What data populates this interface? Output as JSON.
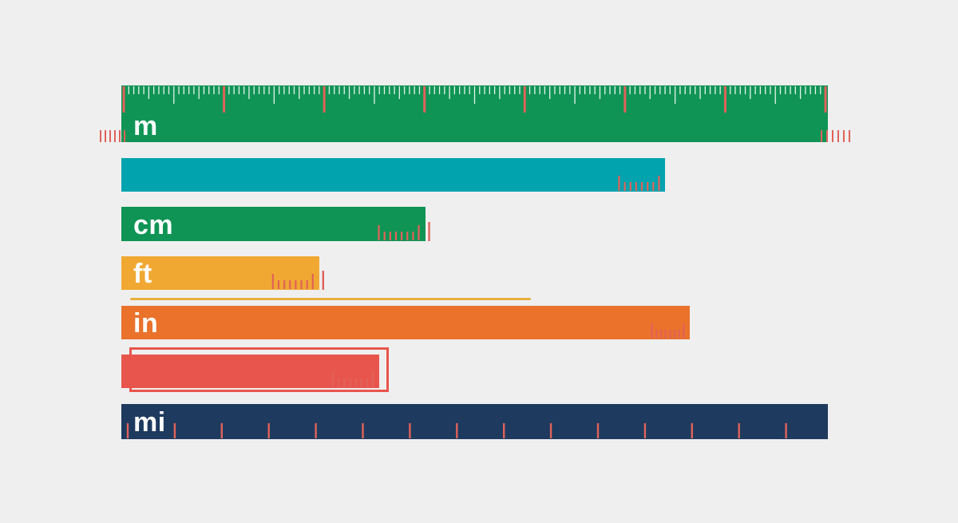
{
  "chart_data": {
    "type": "bar",
    "orientation": "horizontal",
    "title": "",
    "xlabel": "",
    "ylabel": "",
    "grid": false,
    "legend": "none",
    "categories": [
      "m",
      "",
      "cm",
      "ft",
      "in",
      "",
      "mi"
    ],
    "values": [
      1.0,
      0.77,
      0.43,
      0.28,
      0.805,
      0.365,
      1.0
    ],
    "xlim": [
      0,
      1
    ],
    "colors": [
      "#0f9455",
      "#00a3ae",
      "#0f9455",
      "#f0a832",
      "#ea722b",
      "#e8554c",
      "#1e3a5f"
    ],
    "tick_color": "#e0625a"
  },
  "decor": {
    "yellow_rule": {
      "color": "#e7b13e",
      "value": 0.58
    },
    "red_outline": {
      "color": "#e8554c",
      "value": 0.365
    }
  }
}
